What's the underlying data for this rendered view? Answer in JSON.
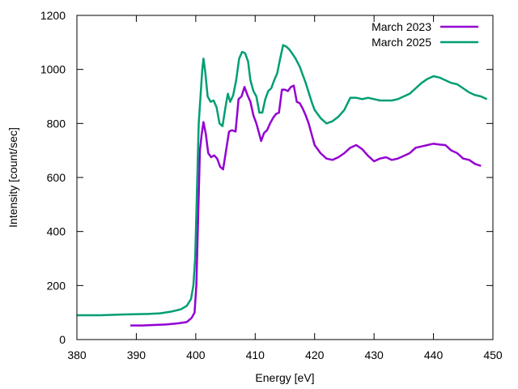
{
  "chart_data": {
    "type": "line",
    "xlabel": "Energy [eV]",
    "ylabel": "Intensity [count/sec]",
    "xlim": [
      380,
      450
    ],
    "ylim": [
      0,
      1200
    ],
    "xticks": [
      380,
      390,
      400,
      410,
      420,
      430,
      440,
      450
    ],
    "yticks": [
      0,
      200,
      400,
      600,
      800,
      1000,
      1200
    ],
    "grid": false,
    "legend": "top-right",
    "series": [
      {
        "name": "March 2023",
        "color": "#9400d3",
        "points": [
          [
            389,
            52
          ],
          [
            391,
            52
          ],
          [
            393,
            54
          ],
          [
            395,
            56
          ],
          [
            397,
            60
          ],
          [
            398.5,
            65
          ],
          [
            399.3,
            80
          ],
          [
            399.8,
            100
          ],
          [
            400.1,
            200
          ],
          [
            400.4,
            450
          ],
          [
            400.7,
            700
          ],
          [
            401.0,
            760
          ],
          [
            401.3,
            805
          ],
          [
            401.7,
            760
          ],
          [
            402.1,
            690
          ],
          [
            402.6,
            675
          ],
          [
            403.1,
            682
          ],
          [
            403.6,
            670
          ],
          [
            404.1,
            640
          ],
          [
            404.6,
            630
          ],
          [
            405.1,
            700
          ],
          [
            405.6,
            770
          ],
          [
            406.1,
            775
          ],
          [
            406.7,
            770
          ],
          [
            407.2,
            890
          ],
          [
            407.7,
            900
          ],
          [
            408.2,
            935
          ],
          [
            408.7,
            905
          ],
          [
            409.2,
            880
          ],
          [
            409.7,
            830
          ],
          [
            410.2,
            800
          ],
          [
            410.7,
            760
          ],
          [
            411.0,
            735
          ],
          [
            411.5,
            765
          ],
          [
            412.0,
            775
          ],
          [
            412.5,
            800
          ],
          [
            413.0,
            820
          ],
          [
            413.5,
            835
          ],
          [
            414.0,
            840
          ],
          [
            414.5,
            925
          ],
          [
            415.0,
            925
          ],
          [
            415.5,
            920
          ],
          [
            416.0,
            935
          ],
          [
            416.5,
            940
          ],
          [
            417.0,
            880
          ],
          [
            417.5,
            875
          ],
          [
            418.0,
            855
          ],
          [
            418.5,
            830
          ],
          [
            419.0,
            800
          ],
          [
            419.5,
            760
          ],
          [
            420.0,
            720
          ],
          [
            421.0,
            690
          ],
          [
            422.0,
            670
          ],
          [
            423.0,
            665
          ],
          [
            424.0,
            675
          ],
          [
            425.0,
            690
          ],
          [
            426.0,
            710
          ],
          [
            427.0,
            720
          ],
          [
            428.0,
            705
          ],
          [
            429.0,
            680
          ],
          [
            430.0,
            660
          ],
          [
            431.0,
            670
          ],
          [
            432.0,
            675
          ],
          [
            433.0,
            665
          ],
          [
            434.0,
            670
          ],
          [
            435.0,
            680
          ],
          [
            436.0,
            690
          ],
          [
            437.0,
            710
          ],
          [
            438.0,
            715
          ],
          [
            439.0,
            720
          ],
          [
            440.0,
            725
          ],
          [
            441.0,
            722
          ],
          [
            442.0,
            720
          ],
          [
            443.0,
            700
          ],
          [
            444.0,
            690
          ],
          [
            445.0,
            670
          ],
          [
            446.0,
            665
          ],
          [
            447.0,
            650
          ],
          [
            448.0,
            643
          ]
        ]
      },
      {
        "name": "March 2025",
        "color": "#009e73",
        "points": [
          [
            380,
            90
          ],
          [
            384,
            90
          ],
          [
            388,
            93
          ],
          [
            392,
            95
          ],
          [
            394,
            97
          ],
          [
            396,
            104
          ],
          [
            397.5,
            112
          ],
          [
            398.5,
            125
          ],
          [
            399.2,
            150
          ],
          [
            399.6,
            200
          ],
          [
            399.9,
            300
          ],
          [
            400.2,
            550
          ],
          [
            400.5,
            800
          ],
          [
            400.8,
            900
          ],
          [
            401.1,
            1000
          ],
          [
            401.3,
            1040
          ],
          [
            401.6,
            990
          ],
          [
            402.0,
            900
          ],
          [
            402.5,
            880
          ],
          [
            403.0,
            885
          ],
          [
            403.5,
            860
          ],
          [
            404.0,
            800
          ],
          [
            404.5,
            790
          ],
          [
            405.0,
            860
          ],
          [
            405.4,
            910
          ],
          [
            405.8,
            880
          ],
          [
            406.3,
            905
          ],
          [
            406.8,
            960
          ],
          [
            407.3,
            1040
          ],
          [
            407.8,
            1065
          ],
          [
            408.3,
            1060
          ],
          [
            408.8,
            1030
          ],
          [
            409.2,
            960
          ],
          [
            409.7,
            920
          ],
          [
            410.2,
            900
          ],
          [
            410.7,
            840
          ],
          [
            411.2,
            840
          ],
          [
            411.7,
            890
          ],
          [
            412.2,
            920
          ],
          [
            412.7,
            930
          ],
          [
            413.2,
            960
          ],
          [
            413.7,
            985
          ],
          [
            414.2,
            1040
          ],
          [
            414.7,
            1090
          ],
          [
            415.2,
            1085
          ],
          [
            415.7,
            1075
          ],
          [
            416.2,
            1060
          ],
          [
            416.8,
            1040
          ],
          [
            417.5,
            1010
          ],
          [
            418.0,
            980
          ],
          [
            418.5,
            950
          ],
          [
            419.0,
            915
          ],
          [
            419.5,
            880
          ],
          [
            420.0,
            850
          ],
          [
            421.0,
            820
          ],
          [
            422.0,
            800
          ],
          [
            423.0,
            808
          ],
          [
            424.0,
            825
          ],
          [
            425.0,
            850
          ],
          [
            426.0,
            895
          ],
          [
            427.0,
            895
          ],
          [
            428.0,
            890
          ],
          [
            429.0,
            895
          ],
          [
            430.0,
            890
          ],
          [
            431.0,
            885
          ],
          [
            432.0,
            885
          ],
          [
            433.0,
            885
          ],
          [
            434.0,
            890
          ],
          [
            435.0,
            900
          ],
          [
            436.0,
            910
          ],
          [
            437.0,
            930
          ],
          [
            438.0,
            950
          ],
          [
            439.0,
            965
          ],
          [
            440.0,
            975
          ],
          [
            441.0,
            970
          ],
          [
            442.0,
            960
          ],
          [
            443.0,
            950
          ],
          [
            444.0,
            945
          ],
          [
            445.0,
            930
          ],
          [
            446.0,
            915
          ],
          [
            447.0,
            905
          ],
          [
            448.0,
            900
          ],
          [
            449.0,
            890
          ]
        ]
      }
    ]
  }
}
